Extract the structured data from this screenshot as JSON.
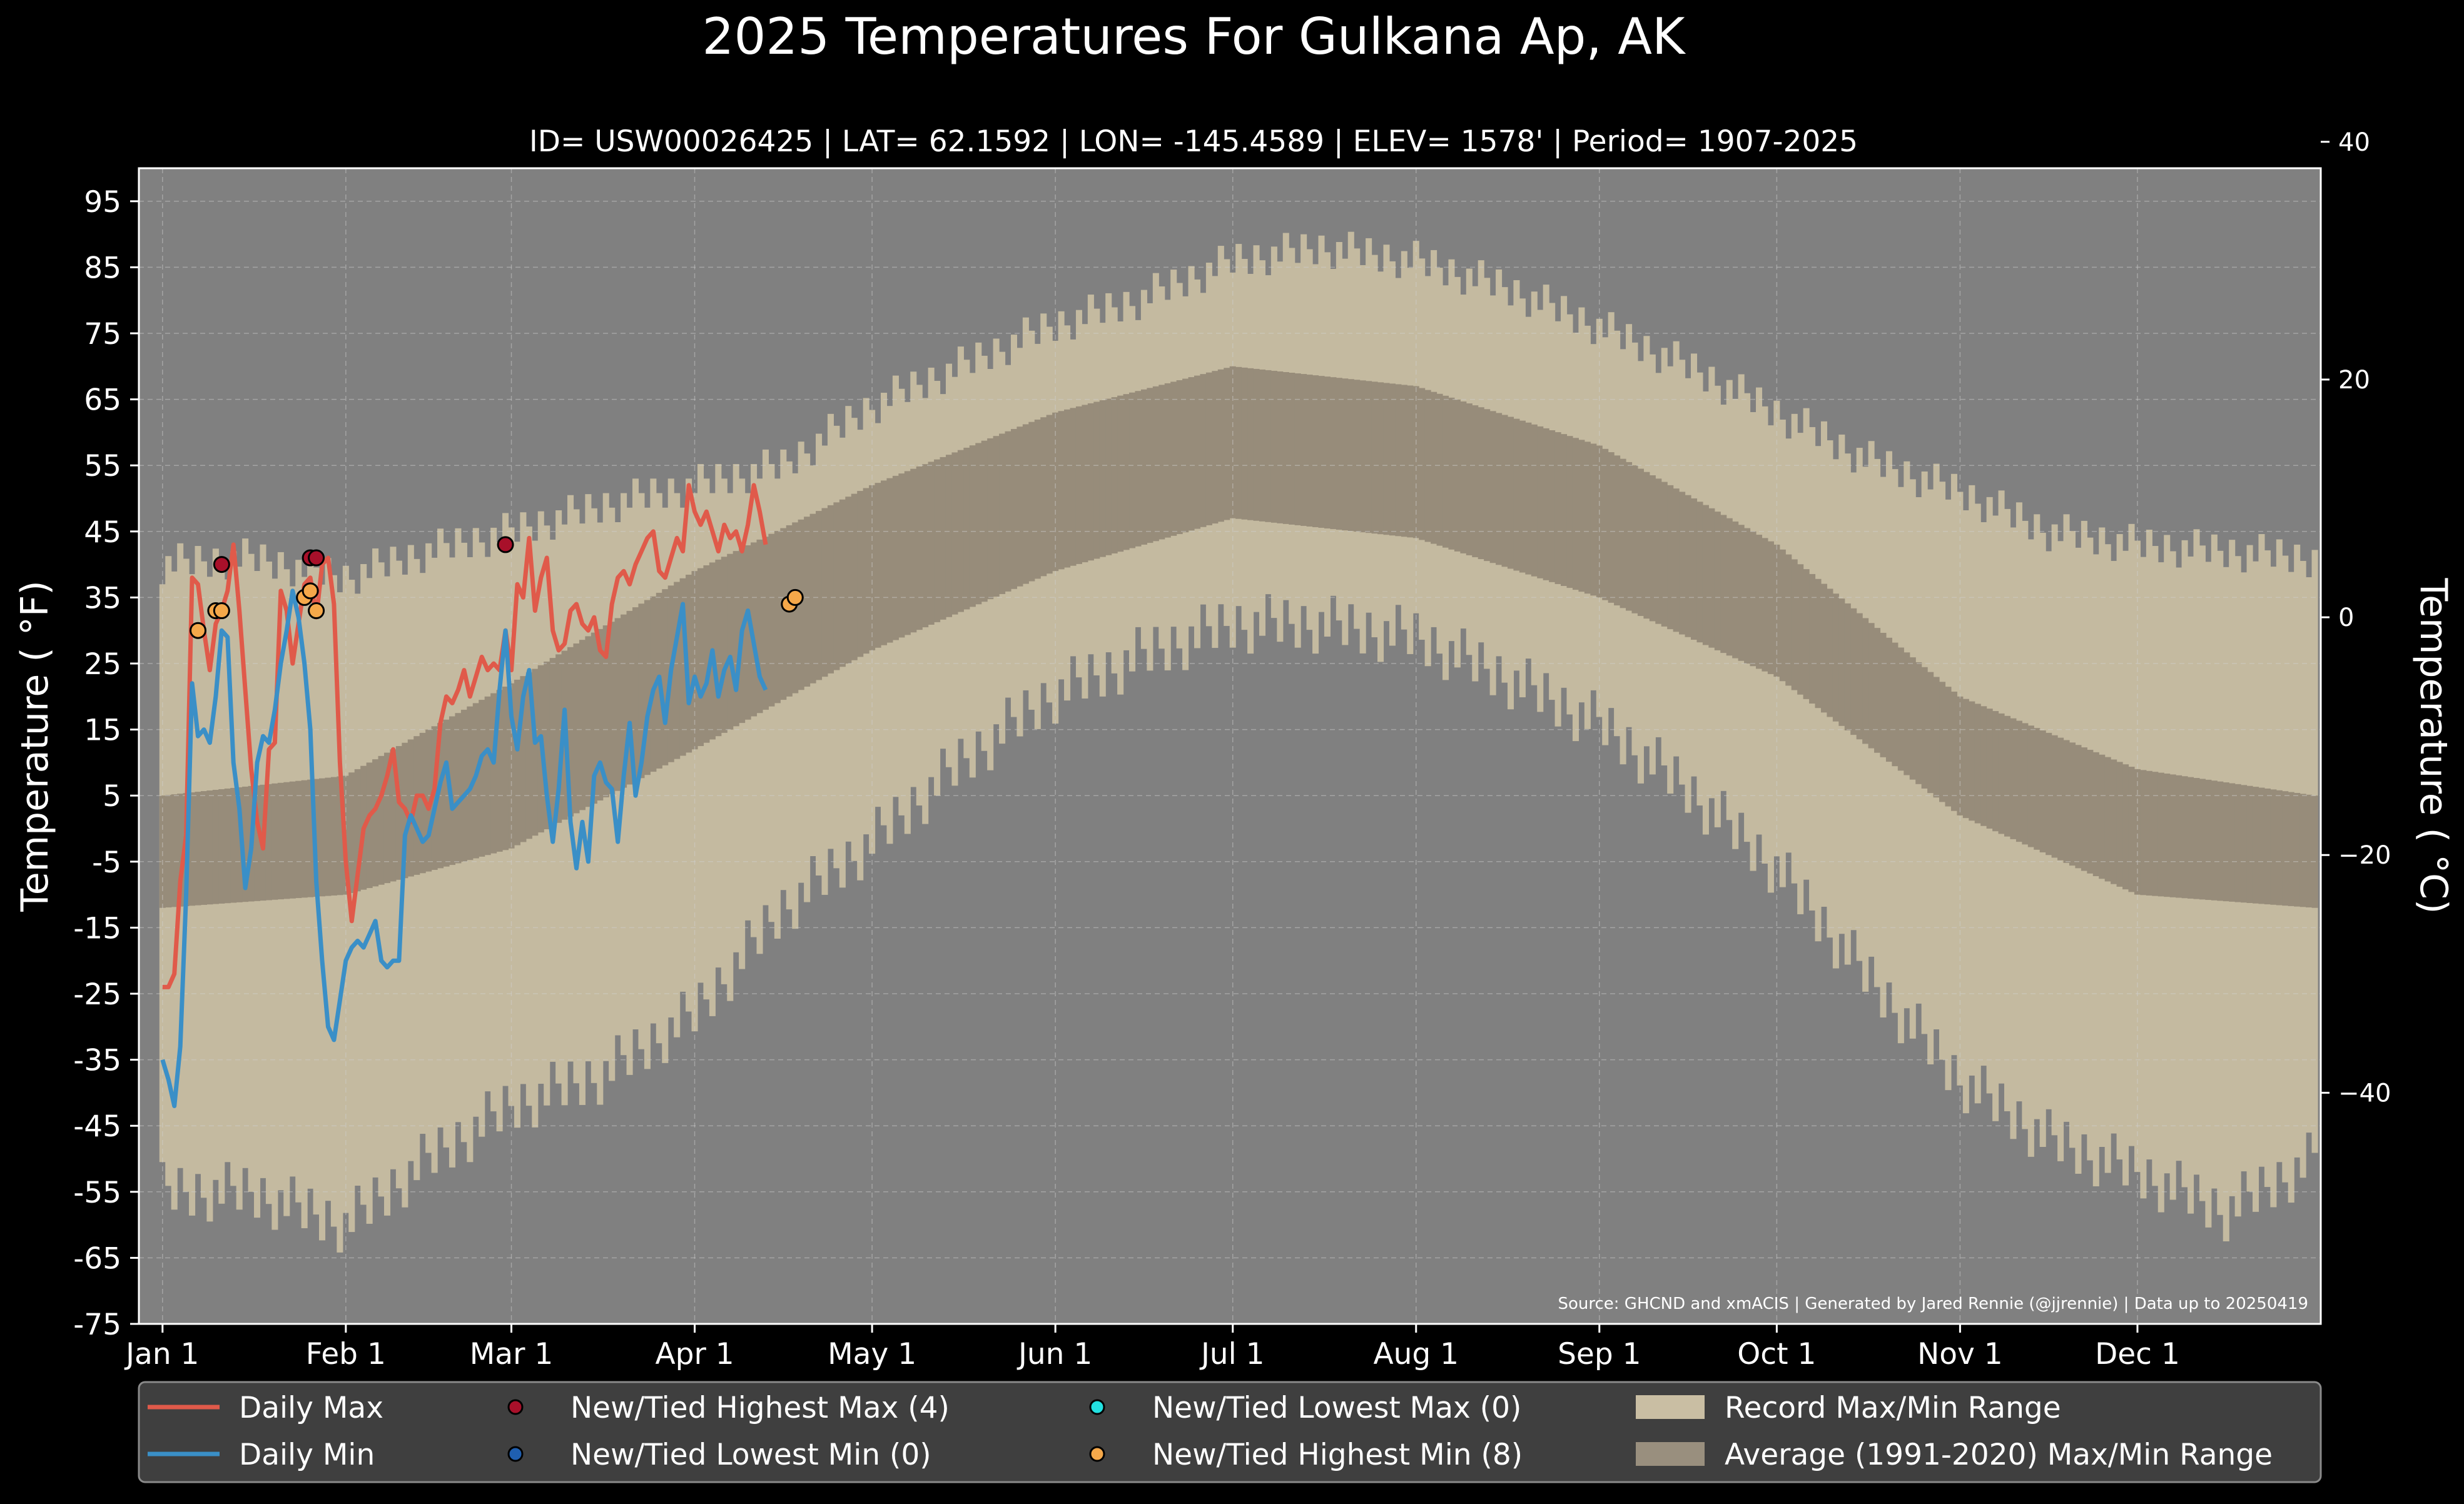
{
  "chart_data": {
    "type": "line",
    "title": "2025 Temperatures For Gulkana Ap, AK",
    "subtitle": "ID= USW00026425 | LAT= 62.1592 | LON= -145.4589 | ELEV= 1578' | Period= 1907-2025",
    "ylabel": "Temperature ($^\\circ$F)",
    "ylabel_display": "Temperature ( °F)",
    "ylabel_right_display": "Temperature ( °C)",
    "source": "Source: GHCND and xmACIS | Generated by Jared Rennie (@jjrennie) | Data up to 20250419",
    "ylim": [
      -75,
      100
    ],
    "xlim_days": [
      -4,
      365
    ],
    "yticks": [
      95,
      85,
      75,
      65,
      55,
      45,
      35,
      25,
      15,
      5,
      -5,
      -15,
      -25,
      -35,
      -45,
      -55,
      -65,
      -75
    ],
    "ytick_labels": [
      "95",
      "85",
      "75",
      "65",
      "55",
      "45",
      "35",
      "25",
      "15",
      "5",
      "-5",
      "-15",
      "-25",
      "-35",
      "-45",
      "-55",
      "-65",
      "-75"
    ],
    "yticks_c": [
      40,
      20,
      0,
      -20,
      -40
    ],
    "ytick_c_labels": [
      "40",
      "20",
      "0",
      "−20",
      "−40"
    ],
    "xticks": [
      {
        "label": "Jan 1",
        "date": "2025-01-01"
      },
      {
        "label": "Feb 1",
        "date": "2025-02-01"
      },
      {
        "label": "Mar 1",
        "date": "2025-03-01"
      },
      {
        "label": "Apr 1",
        "date": "2025-04-01"
      },
      {
        "label": "May 1",
        "date": "2025-05-01"
      },
      {
        "label": "Jun 1",
        "date": "2025-06-01"
      },
      {
        "label": "Jul 1",
        "date": "2025-07-01"
      },
      {
        "label": "Aug 1",
        "date": "2025-08-01"
      },
      {
        "label": "Sep 1",
        "date": "2025-09-01"
      },
      {
        "label": "Oct 1",
        "date": "2025-10-01"
      },
      {
        "label": "Nov 1",
        "date": "2025-11-01"
      },
      {
        "label": "Dec 1",
        "date": "2025-12-01"
      }
    ],
    "grid": true,
    "legend_position": "bottom",
    "legend": [
      {
        "label": "Daily Max",
        "kind": "line",
        "color": "#e05a4a"
      },
      {
        "label": "Daily Min",
        "kind": "line",
        "color": "#3a8fc7"
      },
      {
        "label": "New/Tied Highest Max (4)",
        "kind": "marker",
        "color": "#a8102a"
      },
      {
        "label": "New/Tied Lowest Min (0)",
        "kind": "marker",
        "color": "#1f5fb0"
      },
      {
        "label": "New/Tied Lowest Max (0)",
        "kind": "marker",
        "color": "#22e0e0"
      },
      {
        "label": "New/Tied Highest Min (8)",
        "kind": "marker",
        "color": "#f5a84a"
      },
      {
        "label": "Record Max/Min Range",
        "kind": "patch",
        "color": "#c9bea3"
      },
      {
        "label": "Average (1991-2020) Max/Min Range",
        "kind": "patch",
        "color": "#998f7e"
      }
    ],
    "colors": {
      "plot_bg": "#808080",
      "record_band": "#c4baa0",
      "average_band": "#978c7a",
      "daily_max": "#e05a4a",
      "daily_min": "#3a8fc7",
      "highest_max": "#a8102a",
      "highest_min": "#f5a84a"
    },
    "record_max_anchors": {
      "x": [
        0,
        15,
        31,
        45,
        59,
        75,
        90,
        105,
        120,
        135,
        150,
        165,
        181,
        196,
        212,
        227,
        243,
        258,
        273,
        288,
        304,
        319,
        334,
        349,
        364
      ],
      "y": [
        40,
        41,
        38,
        42,
        45,
        49,
        52,
        55,
        64,
        70,
        76,
        80,
        86,
        88,
        86,
        82,
        76,
        70,
        63,
        56,
        51,
        45,
        43,
        42,
        41
      ]
    },
    "record_min_anchors": {
      "x": [
        0,
        15,
        31,
        45,
        59,
        75,
        90,
        105,
        120,
        135,
        150,
        165,
        181,
        196,
        212,
        227,
        243,
        258,
        273,
        288,
        304,
        319,
        334,
        349,
        364
      ],
      "y": [
        -55,
        -55,
        -60,
        -50,
        -42,
        -37,
        -28,
        -12,
        -2,
        10,
        20,
        26,
        31,
        31,
        29,
        23,
        16,
        6,
        -6,
        -22,
        -38,
        -47,
        -52,
        -58,
        -50
      ]
    },
    "average_max_anchors": {
      "x": [
        0,
        31,
        59,
        90,
        120,
        151,
        181,
        212,
        243,
        273,
        304,
        334,
        364
      ],
      "y": [
        5,
        8,
        22,
        39,
        52,
        63,
        70,
        67,
        58,
        43,
        20,
        9,
        5
      ]
    },
    "average_min_anchors": {
      "x": [
        0,
        31,
        59,
        90,
        120,
        151,
        181,
        212,
        243,
        273,
        304,
        334,
        364
      ],
      "y": [
        -12,
        -10,
        -3,
        12,
        27,
        39,
        47,
        44,
        35,
        23,
        2,
        -10,
        -12
      ]
    },
    "daily_max": [
      -24,
      -24,
      -22,
      -8,
      -1,
      38,
      37,
      30,
      24,
      31,
      33,
      36,
      43,
      33,
      21,
      9,
      1,
      -3,
      12,
      13,
      36,
      33,
      25,
      31,
      37,
      38,
      32,
      40,
      41,
      34,
      10,
      -5,
      -14,
      -7,
      0,
      2,
      3,
      5,
      8,
      12,
      4,
      3,
      1,
      5,
      5,
      3,
      6,
      16,
      20,
      19,
      21,
      24,
      20,
      23,
      26,
      24,
      25,
      24,
      30,
      24,
      37,
      35,
      44,
      33,
      38,
      41,
      30,
      27,
      28,
      33,
      34,
      31,
      30,
      32,
      27,
      26,
      34,
      38,
      39,
      37,
      40,
      42,
      44,
      45,
      39,
      38,
      41,
      44,
      42,
      52,
      48,
      46,
      48,
      45,
      42,
      46,
      44,
      45,
      42,
      46,
      52,
      48,
      43
    ],
    "daily_min": [
      -35,
      -38,
      -42,
      -33,
      -10,
      22,
      14,
      15,
      13,
      20,
      30,
      29,
      10,
      3,
      -9,
      -3,
      10,
      14,
      13,
      18,
      25,
      30,
      36,
      32,
      25,
      15,
      -8,
      -20,
      -30,
      -32,
      -26,
      -20,
      -18,
      -17,
      -18,
      -16,
      -14,
      -20,
      -21,
      -20,
      -20,
      -1,
      2,
      0,
      -2,
      -1,
      3,
      7,
      10,
      3,
      4,
      5,
      6,
      8,
      11,
      12,
      10,
      21,
      30,
      17,
      12,
      20,
      24,
      13,
      14,
      5,
      -2,
      6,
      18,
      1,
      -6,
      1,
      -5,
      8,
      10,
      7,
      6,
      -2,
      8,
      16,
      5,
      10,
      17,
      21,
      23,
      16,
      24,
      29,
      34,
      19,
      23,
      20,
      22,
      27,
      20,
      24,
      26,
      21,
      30,
      33,
      28,
      23,
      21
    ],
    "highest_max_marks": [
      {
        "x": 10,
        "y": 40
      },
      {
        "x": 25,
        "y": 41
      },
      {
        "x": 26,
        "y": 41
      },
      {
        "x": 58,
        "y": 43
      }
    ],
    "highest_min_marks": [
      {
        "x": 6,
        "y": 30
      },
      {
        "x": 9,
        "y": 33
      },
      {
        "x": 10,
        "y": 33
      },
      {
        "x": 24,
        "y": 35
      },
      {
        "x": 25,
        "y": 36
      },
      {
        "x": 26,
        "y": 33
      },
      {
        "x": 106,
        "y": 34
      },
      {
        "x": 107,
        "y": 35
      }
    ]
  }
}
